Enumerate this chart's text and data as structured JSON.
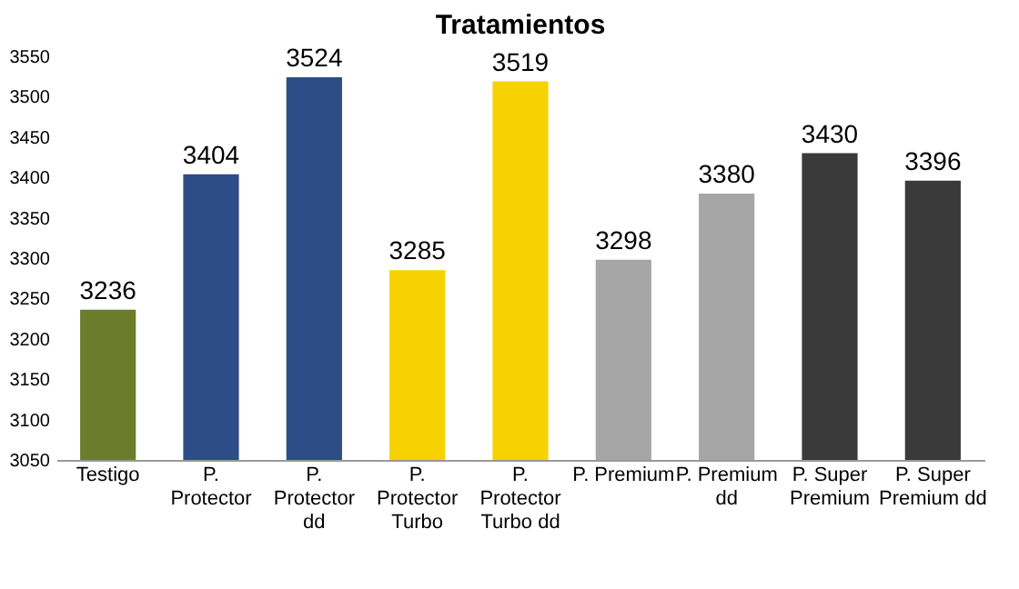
{
  "chart_data": {
    "type": "bar",
    "title": "Tratamientos",
    "categories": [
      "Testigo",
      "P. Protector",
      "P. Protector dd",
      "P. Protector Turbo",
      "P. Protector Turbo dd",
      "P. Premium",
      "P. Premium dd",
      "P. Super Premium",
      "P. Super Premium dd"
    ],
    "values": [
      3236,
      3404,
      3524,
      3285,
      3519,
      3298,
      3380,
      3430,
      3396
    ],
    "colors": [
      "#6b7d2a",
      "#2c4d85",
      "#2c4d85",
      "#f5d200",
      "#f5d200",
      "#a6a6a6",
      "#a6a6a6",
      "#3a3a3a",
      "#3a3a3a"
    ],
    "ylim": [
      3050,
      3550
    ],
    "yticks": [
      3050,
      3100,
      3150,
      3200,
      3250,
      3300,
      3350,
      3400,
      3450,
      3500,
      3550
    ],
    "data_labels": true,
    "grid": false,
    "legend": false
  }
}
